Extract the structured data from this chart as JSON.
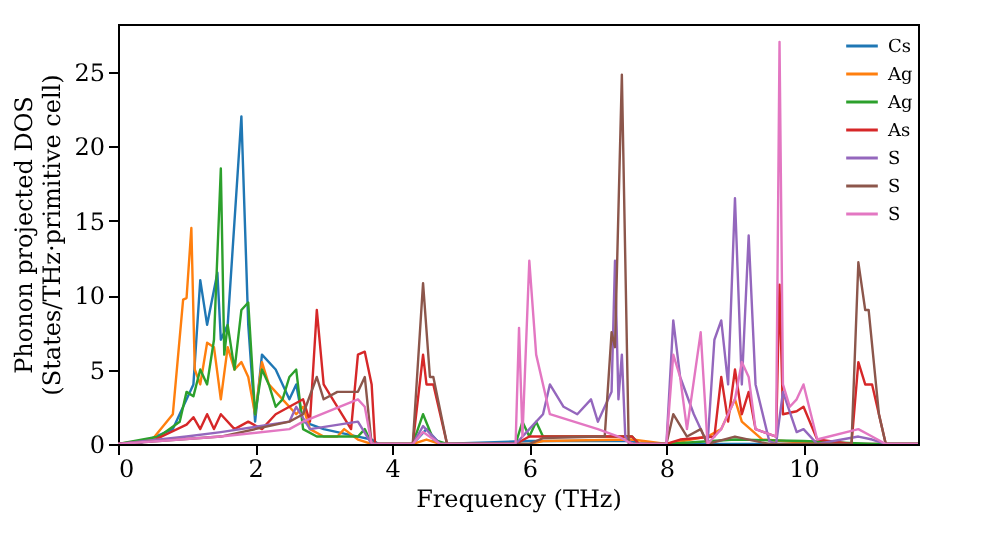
{
  "chart_data": {
    "type": "line",
    "xlabel": "Frequency (THz)",
    "ylabel": "Phonon projected DOS\n(States/THz·primitive cell)",
    "xlim": [
      0,
      11.67
    ],
    "ylim": [
      0,
      28.2
    ],
    "xticks": [
      0,
      2,
      4,
      6,
      8,
      10
    ],
    "yticks": [
      0,
      5,
      10,
      15,
      20,
      25
    ],
    "grid": false,
    "legend": "top right",
    "marker": "none",
    "line_style": "solid",
    "series": [
      {
        "name": "Cs",
        "color": "#1f77b4",
        "x": [
          0,
          0.3,
          0.8,
          1.1,
          1.2,
          1.3,
          1.45,
          1.5,
          1.6,
          1.8,
          1.9,
          2.0,
          2.1,
          2.3,
          2.5,
          2.6,
          2.7,
          3.0,
          3.5,
          3.7,
          3.8,
          4.3,
          4.5,
          4.7,
          6.0,
          7.5,
          7.6,
          11.67
        ],
        "values": [
          0,
          0,
          1,
          4,
          11,
          8,
          11.5,
          7,
          8,
          22,
          8,
          1.5,
          6,
          5,
          3,
          4,
          1.5,
          1,
          0.5,
          0.3,
          0,
          0,
          1,
          0,
          0.2,
          0.2,
          0,
          0
        ]
      },
      {
        "name": "Ag",
        "color": "#ff7f0e",
        "x": [
          0,
          0.5,
          0.8,
          0.95,
          1.0,
          1.07,
          1.12,
          1.2,
          1.3,
          1.4,
          1.5,
          1.6,
          1.7,
          1.8,
          1.9,
          2.0,
          2.1,
          2.2,
          2.4,
          2.6,
          2.7,
          2.8,
          3.0,
          3.2,
          3.3,
          3.5,
          3.7,
          4.3,
          4.5,
          4.7,
          6.0,
          6.2,
          7.5,
          8.0,
          8.6,
          8.8,
          9.0,
          9.1,
          9.4,
          10.0,
          10.8,
          11.67
        ],
        "values": [
          0,
          0.3,
          2,
          9.7,
          9.8,
          14.5,
          5,
          4,
          6.8,
          6.5,
          3,
          6.5,
          5,
          5.5,
          4.5,
          2,
          5.5,
          4,
          3,
          2,
          2.5,
          1,
          0.5,
          0.5,
          1,
          0.3,
          0,
          0,
          0.3,
          0,
          0,
          0.2,
          0.3,
          0,
          0.5,
          1,
          3,
          1.5,
          0.3,
          0.1,
          0,
          0
        ]
      },
      {
        "name": "Ag",
        "color": "#2ca02c",
        "x": [
          0,
          0.6,
          0.9,
          1.0,
          1.1,
          1.2,
          1.3,
          1.4,
          1.5,
          1.55,
          1.6,
          1.7,
          1.8,
          1.9,
          2.0,
          2.1,
          2.2,
          2.3,
          2.4,
          2.5,
          2.6,
          2.7,
          2.9,
          3.5,
          3.6,
          3.7,
          4.3,
          4.45,
          4.6,
          4.8,
          5.8,
          5.9,
          6.0,
          6.1,
          6.2,
          7.5,
          7.6,
          8.0,
          9.0,
          10.0,
          11.0,
          11.67
        ],
        "values": [
          0,
          0.5,
          1.5,
          3.5,
          3.2,
          5,
          4,
          7,
          18.5,
          6,
          8,
          5,
          9,
          9.5,
          2,
          5,
          4,
          2.5,
          3,
          4.5,
          5,
          1,
          0.5,
          0.5,
          1,
          0,
          0,
          2,
          0.3,
          0,
          0,
          1.5,
          0.5,
          1.5,
          0.5,
          0.5,
          0,
          0,
          0.3,
          0.2,
          0,
          0
        ]
      },
      {
        "name": "As",
        "color": "#d62728",
        "x": [
          0,
          0.5,
          1.0,
          1.1,
          1.2,
          1.3,
          1.4,
          1.5,
          1.7,
          1.9,
          2.1,
          2.3,
          2.5,
          2.7,
          2.8,
          2.9,
          3.0,
          3.2,
          3.4,
          3.5,
          3.6,
          3.7,
          3.75,
          4.3,
          4.45,
          4.5,
          4.6,
          4.8,
          5.8,
          6.0,
          7.5,
          7.6,
          8.0,
          8.2,
          8.7,
          8.8,
          8.9,
          9.0,
          9.1,
          9.2,
          9.3,
          9.6,
          9.65,
          9.7,
          9.9,
          10.0,
          10.2,
          10.7,
          10.8,
          10.9,
          11.0,
          11.2,
          11.67
        ],
        "values": [
          0,
          0.2,
          1.3,
          1.8,
          1,
          2,
          1,
          2,
          1,
          1.5,
          1,
          2,
          2.5,
          3,
          1.5,
          9,
          4,
          2.5,
          1,
          6,
          6.2,
          4,
          0,
          0,
          6,
          4,
          4,
          0,
          0,
          0.5,
          0.5,
          0,
          0,
          0.3,
          0.5,
          4.5,
          1.5,
          5,
          2,
          3.5,
          1,
          0.5,
          10.7,
          2,
          2.2,
          2.5,
          0.3,
          0,
          5.5,
          4,
          4,
          0,
          0
        ]
      },
      {
        "name": "S",
        "color": "#9467bd",
        "x": [
          0,
          1.0,
          1.5,
          2.5,
          2.6,
          2.8,
          3.5,
          3.7,
          4.3,
          4.45,
          4.7,
          5.8,
          6.0,
          6.2,
          6.3,
          6.5,
          6.7,
          6.9,
          7.0,
          7.2,
          7.25,
          7.3,
          7.35,
          7.4,
          7.5,
          8.0,
          8.1,
          8.2,
          8.4,
          8.5,
          8.6,
          8.7,
          8.8,
          8.9,
          9.0,
          9.1,
          9.2,
          9.3,
          9.5,
          9.6,
          9.7,
          9.9,
          10.0,
          10.2,
          10.8,
          11.0,
          11.2,
          11.67
        ],
        "values": [
          0,
          0.5,
          0.8,
          1.5,
          2.5,
          1,
          1.5,
          0,
          0,
          1.2,
          0,
          0,
          1,
          2,
          4,
          2.5,
          2,
          3,
          1.5,
          3.5,
          12.3,
          3,
          6,
          0.5,
          0,
          0,
          8.3,
          4.5,
          2,
          1,
          0,
          7,
          8.3,
          4,
          16.5,
          4,
          14,
          4,
          0.2,
          0,
          3.5,
          0.8,
          1,
          0,
          0.5,
          0.3,
          0,
          0
        ]
      },
      {
        "name": "S",
        "color": "#8c564b",
        "x": [
          0,
          1.5,
          2.5,
          2.7,
          2.9,
          3.0,
          3.2,
          3.5,
          3.6,
          3.7,
          4.3,
          4.45,
          4.55,
          4.6,
          4.8,
          6.0,
          6.2,
          7.1,
          7.2,
          7.25,
          7.35,
          7.45,
          8.0,
          8.1,
          8.3,
          8.5,
          8.6,
          9.0,
          9.5,
          10.7,
          10.8,
          10.9,
          10.95,
          11.1,
          11.2,
          11.67
        ],
        "values": [
          0,
          0.5,
          1.5,
          2,
          4.5,
          3,
          3.5,
          3.5,
          4.5,
          0,
          0,
          10.8,
          4.5,
          4.5,
          0,
          0,
          0.4,
          0.5,
          7.5,
          6.5,
          24.8,
          0,
          0,
          2,
          0.5,
          1,
          0,
          0.5,
          0,
          0,
          12.2,
          9,
          9,
          2,
          0,
          0
        ]
      },
      {
        "name": "S",
        "color": "#e377c2",
        "x": [
          0,
          1.5,
          2.5,
          2.7,
          3.5,
          3.6,
          3.7,
          4.3,
          4.45,
          4.7,
          5.8,
          5.85,
          5.9,
          6.0,
          6.1,
          6.3,
          7.0,
          7.3,
          7.5,
          8.0,
          8.1,
          8.2,
          8.3,
          8.5,
          8.6,
          8.8,
          9.0,
          9.1,
          9.2,
          9.3,
          9.6,
          9.65,
          9.7,
          9.8,
          9.9,
          10.0,
          10.2,
          10.8,
          11.0,
          11.2,
          11.67
        ],
        "values": [
          0,
          0.5,
          1,
          1.5,
          3,
          2.5,
          0,
          0,
          0.8,
          0,
          0,
          7.8,
          0.5,
          12.3,
          6,
          2,
          1,
          0.5,
          0,
          0,
          6,
          4.5,
          1,
          7.5,
          0,
          1,
          3,
          5.5,
          4.5,
          1,
          0.5,
          27,
          4,
          2.5,
          3,
          4,
          0.3,
          1,
          0.5,
          0,
          0
        ]
      }
    ]
  }
}
